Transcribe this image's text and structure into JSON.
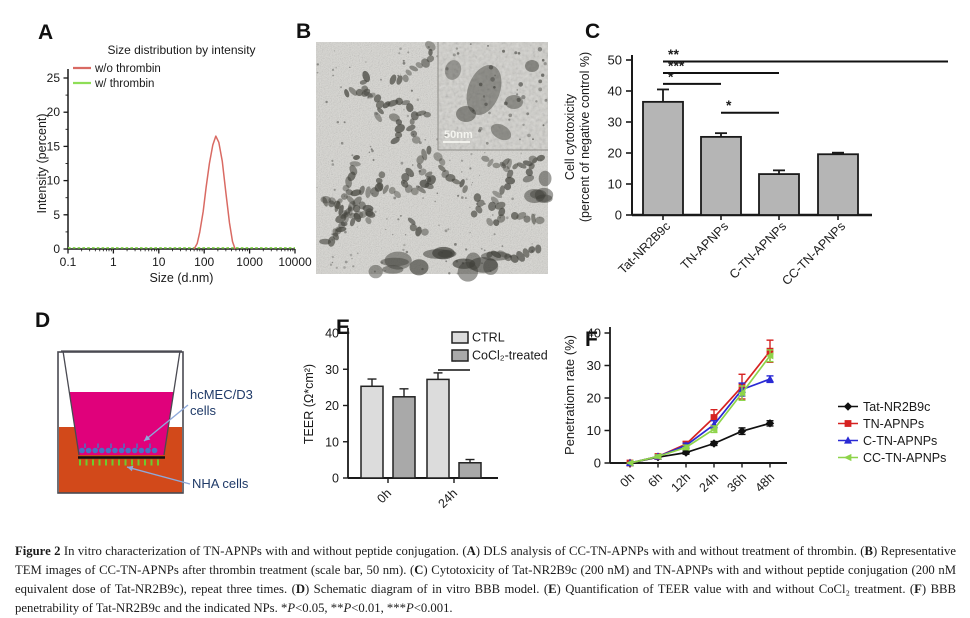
{
  "panels": {
    "a": {
      "label": "A"
    },
    "b": {
      "label": "B",
      "scale_bar": "50nm"
    },
    "c": {
      "label": "C"
    },
    "d": {
      "label": "D",
      "labels": {
        "insert_cells_line1": "hcMEC/D3",
        "insert_cells_line2": "cells",
        "bottom_cells": "NHA cells"
      },
      "colors": {
        "medium_top": "#e0017b",
        "medium_bottom": "#d2491a",
        "cells_blue": "#4a72c4",
        "cells_green": "#6ecb2e",
        "membrane": "#111111",
        "label_text": "#1f3a68",
        "arrow": "#8ea9db",
        "well_outline": "#4a4a52"
      }
    },
    "e": {
      "label": "E"
    },
    "f": {
      "label": "F"
    }
  },
  "chart_data": [
    {
      "id": "A",
      "type": "line",
      "title": "Size distribution by intensity",
      "xlabel": "Size (d.nm)",
      "ylabel": "Intensity (percent)",
      "x_scale": "log",
      "xlim": [
        0.1,
        10000
      ],
      "ylim": [
        0,
        25
      ],
      "yticks": [
        0,
        5,
        10,
        15,
        20,
        25
      ],
      "xticks": [
        0.1,
        1,
        10,
        100,
        1000,
        10000
      ],
      "legend_position": "top-left",
      "series": [
        {
          "name": "w/o thrombin",
          "color": "#d96a63",
          "x": [
            60,
            70,
            80,
            95,
            110,
            130,
            155,
            180,
            210,
            250,
            300,
            360,
            420,
            480
          ],
          "y": [
            0,
            0.8,
            2.5,
            5.5,
            9,
            12.5,
            15.2,
            16.5,
            15.6,
            12.8,
            8.2,
            3.8,
            1.1,
            0
          ]
        },
        {
          "name": "w/ thrombin",
          "color": "#8ede57",
          "x": [
            0.1,
            10000
          ],
          "y": [
            0,
            0
          ]
        }
      ]
    },
    {
      "id": "C",
      "type": "bar",
      "ylabel_lines": [
        "Cell cytotoxicity",
        "(percent of negative control %)"
      ],
      "categories": [
        "Tat-NR2B9c",
        "TN-APNPs",
        "C-TN-APNPs",
        "CC-TN-APNPs"
      ],
      "values": [
        36.5,
        25.2,
        13.2,
        19.6
      ],
      "errors": [
        4.0,
        1.2,
        1.2,
        0.5
      ],
      "ylim": [
        0,
        50
      ],
      "yticks": [
        0,
        10,
        20,
        30,
        40,
        50
      ],
      "bar_color": "#b5b5b5",
      "significance": [
        {
          "from": 0,
          "to": 3,
          "extend": true,
          "level": 49.5,
          "label": "**"
        },
        {
          "from": 0,
          "to": 2,
          "extend": false,
          "level": 45.8,
          "label": "***"
        },
        {
          "from": 0,
          "to": 1,
          "extend": false,
          "level": 42.3,
          "label": "*"
        },
        {
          "from": 1,
          "to": 2,
          "extend": false,
          "level": 33,
          "label": "*"
        }
      ]
    },
    {
      "id": "E",
      "type": "grouped_bar",
      "ylabel": "TEER (Ω*cm²)",
      "categories": [
        "0h",
        "24h"
      ],
      "series": [
        {
          "name": "CTRL",
          "color": "#dcdcdc",
          "values": [
            25.3,
            27.2
          ],
          "errors": [
            2.0,
            1.8
          ]
        },
        {
          "name": "CoCl₂-treated",
          "color": "#a9a9a9",
          "values": [
            22.4,
            4.2
          ],
          "errors": [
            2.2,
            0.9
          ]
        }
      ],
      "ylim": [
        0,
        40
      ],
      "yticks": [
        0,
        10,
        20,
        30,
        40
      ],
      "significance": [
        {
          "group": 1,
          "label": "*"
        }
      ]
    },
    {
      "id": "F",
      "type": "line",
      "ylabel": "Penetratiom rate (%)",
      "categories": [
        "0h",
        "6h",
        "12h",
        "24h",
        "36h",
        "48h"
      ],
      "ylim": [
        0,
        40
      ],
      "yticks": [
        0,
        10,
        20,
        30,
        40
      ],
      "legend_position": "right",
      "series": [
        {
          "name": "Tat-NR2B9c",
          "color": "#101010",
          "marker": "diamond",
          "values": [
            0,
            1.8,
            3.2,
            6.0,
            9.8,
            12.2
          ],
          "errors": [
            0.2,
            0.4,
            0.5,
            0.6,
            1.0,
            0.8
          ]
        },
        {
          "name": "TN-APNPs",
          "color": "#d62221",
          "marker": "square",
          "values": [
            0,
            2.0,
            5.8,
            14.0,
            23.5,
            34.4
          ],
          "errors": [
            0.2,
            0.5,
            0.8,
            2.4,
            3.8,
            3.4
          ]
        },
        {
          "name": "C-TN-APNPs",
          "color": "#2a2ad4",
          "marker": "triangle",
          "values": [
            0,
            2.0,
            5.4,
            11.8,
            22.6,
            25.8
          ],
          "errors": [
            0.2,
            0.5,
            0.7,
            1.2,
            2.0,
            1.0
          ]
        },
        {
          "name": "CC-TN-APNPs",
          "color": "#8ed44a",
          "marker": "triangle-left",
          "values": [
            0,
            2.0,
            4.8,
            10.4,
            21.5,
            33.0
          ],
          "errors": [
            0.2,
            0.5,
            0.7,
            1.0,
            2.2,
            1.8
          ]
        }
      ]
    }
  ],
  "figure_caption": {
    "segments": [
      {
        "t": "Figure 2",
        "b": true
      },
      {
        "t": " In vitro characterization of TN-APNPs with and without peptide conjugation. ("
      },
      {
        "t": "A",
        "b": true
      },
      {
        "t": ") DLS analysis of CC-TN-APNPs with and without treatment of thrombin. ("
      },
      {
        "t": "B",
        "b": true
      },
      {
        "t": ") Representative TEM images of CC-TN-APNPs after thrombin treatment (scale bar, 50 nm). ("
      },
      {
        "t": "C",
        "b": true
      },
      {
        "t": ") Cytotoxicity of Tat-NR2B9c (200 nM) and TN-APNPs with and without peptide conjugation (200 nM equivalent dose of Tat-NR2B9c), repeat three times. ("
      },
      {
        "t": "D",
        "b": true
      },
      {
        "t": ") Schematic diagram of in vitro BBB model. ("
      },
      {
        "t": "E",
        "b": true
      },
      {
        "t": ") Quantification of TEER value with and without CoCl₂ treatment. ("
      },
      {
        "t": "F",
        "b": true
      },
      {
        "t": ") BBB penetrability of Tat-NR2B9c and the indicated NPs. *"
      },
      {
        "t": "P",
        "i": true
      },
      {
        "t": "<0.05, **"
      },
      {
        "t": "P",
        "i": true
      },
      {
        "t": "<0.01, ***"
      },
      {
        "t": "P",
        "i": true
      },
      {
        "t": "<0.001."
      }
    ]
  }
}
